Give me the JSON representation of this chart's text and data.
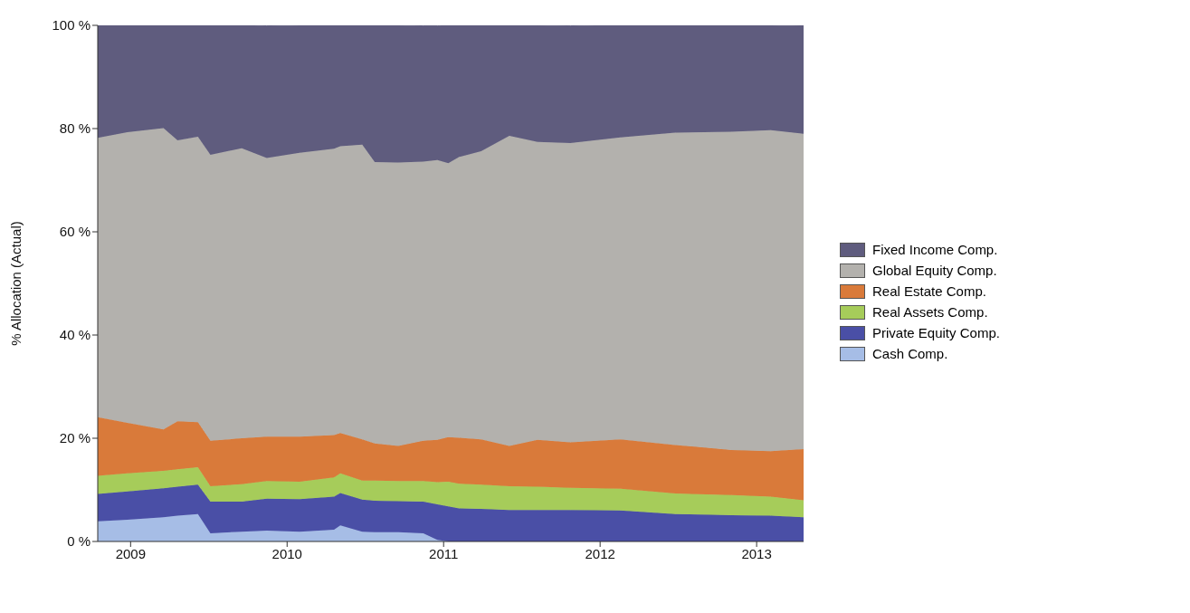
{
  "chart_data": {
    "type": "area",
    "stacked": true,
    "ylabel": "% Allocation (Actual)",
    "x": [
      2008.79,
      2008.98,
      2009.21,
      2009.3,
      2009.43,
      2009.51,
      2009.71,
      2009.87,
      2010.08,
      2010.3,
      2010.34,
      2010.48,
      2010.56,
      2010.71,
      2010.87,
      2010.96,
      2011.03,
      2011.1,
      2011.24,
      2011.42,
      2011.6,
      2011.81,
      2012.13,
      2012.48,
      2012.84,
      2013.09,
      2013.3
    ],
    "xlim": [
      2008.79,
      2013.3
    ],
    "xticks": [
      2009,
      2010,
      2011,
      2012,
      2013
    ],
    "ylim": [
      0,
      100
    ],
    "yticks": [
      {
        "value": 0,
        "label": "0 %"
      },
      {
        "value": 20,
        "label": "20 %"
      },
      {
        "value": 40,
        "label": "40 %"
      },
      {
        "value": 60,
        "label": "60 %"
      },
      {
        "value": 80,
        "label": "80 %"
      },
      {
        "value": 100,
        "label": "100 %"
      }
    ],
    "grid": false,
    "legend": "right",
    "series": [
      {
        "name": "Cash Comp.",
        "color": "#a6bde6",
        "values": [
          3.9,
          4.2,
          4.7,
          5.0,
          5.3,
          1.6,
          1.9,
          2.1,
          1.9,
          2.3,
          3.1,
          1.9,
          1.8,
          1.8,
          1.6,
          0.3,
          0,
          0,
          0,
          0,
          0,
          0,
          0,
          0,
          0,
          0,
          0
        ]
      },
      {
        "name": "Private Equity Comp.",
        "color": "#4a4fa6",
        "values": [
          5.3,
          5.5,
          5.6,
          5.6,
          5.7,
          6.1,
          5.8,
          6.2,
          6.3,
          6.4,
          6.3,
          6.2,
          6.1,
          6.0,
          6.1,
          6.9,
          6.8,
          6.4,
          6.3,
          6.1,
          6.1,
          6.1,
          6.0,
          5.3,
          5.1,
          5.0,
          4.7
        ]
      },
      {
        "name": "Real Assets Comp.",
        "color": "#a6cc5a",
        "values": [
          3.5,
          3.5,
          3.4,
          3.4,
          3.4,
          3.0,
          3.4,
          3.4,
          3.4,
          3.7,
          3.8,
          3.7,
          3.9,
          3.9,
          4.0,
          4.3,
          4.8,
          4.8,
          4.7,
          4.6,
          4.5,
          4.3,
          4.2,
          4.0,
          3.9,
          3.7,
          3.3
        ]
      },
      {
        "name": "Real Estate Comp.",
        "color": "#d97a3a",
        "values": [
          11.4,
          9.8,
          8.0,
          9.3,
          8.7,
          8.8,
          8.9,
          8.6,
          8.7,
          8.2,
          7.8,
          8.0,
          7.2,
          6.8,
          7.8,
          8.2,
          8.6,
          8.9,
          8.8,
          7.8,
          9.1,
          8.8,
          9.6,
          9.4,
          8.7,
          8.8,
          9.9
        ]
      },
      {
        "name": "Global Equity Comp.",
        "color": "#b3b1ad",
        "values": [
          54.1,
          56.3,
          58.4,
          54.4,
          55.3,
          55.4,
          56.2,
          54.0,
          55.0,
          55.5,
          55.6,
          57.1,
          54.5,
          54.9,
          54.1,
          54.2,
          53.1,
          54.4,
          55.8,
          60.1,
          57.7,
          58.0,
          58.5,
          60.5,
          61.7,
          62.2,
          61.1
        ]
      },
      {
        "name": "Fixed Income Comp.",
        "color": "#5f5c7e",
        "values": [
          21.8,
          20.7,
          19.9,
          22.3,
          21.8,
          25.1,
          23.9,
          25.6,
          24.7,
          23.9,
          23.5,
          23.1,
          26.6,
          26.6,
          26.3,
          26.0,
          26.9,
          25.5,
          24.4,
          21.4,
          22.6,
          22.7,
          21.8,
          20.8,
          20.6,
          20.3,
          20.9
        ]
      }
    ]
  }
}
